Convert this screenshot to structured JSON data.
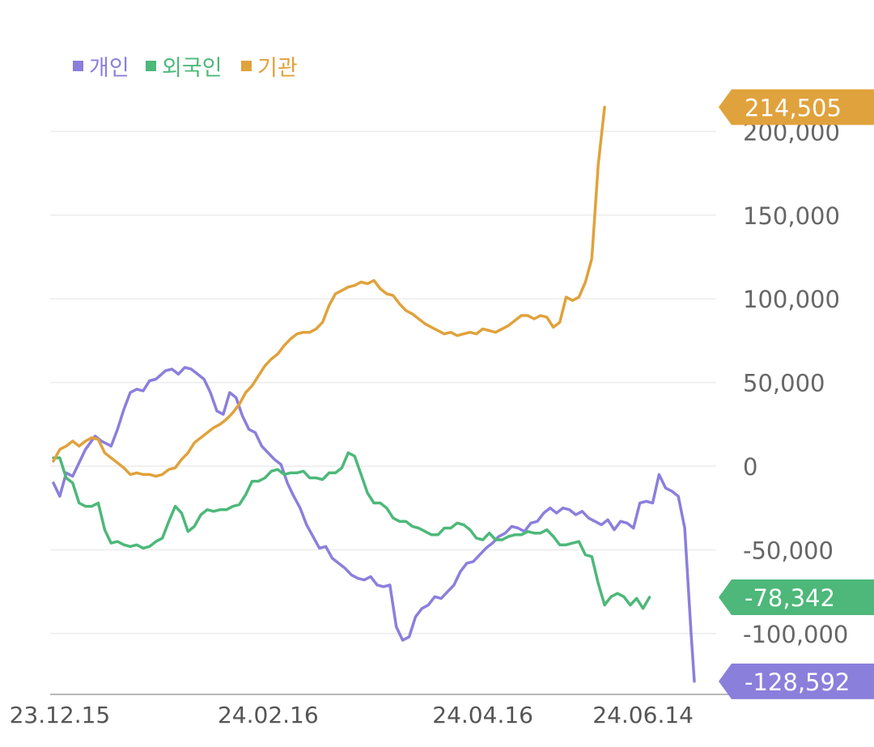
{
  "chart_data": {
    "type": "line",
    "legend": {
      "placement": "top-left",
      "items": [
        {
          "name": "개인",
          "color": "#8b7fdc"
        },
        {
          "name": "외국인",
          "color": "#4db87a"
        },
        {
          "name": "기관",
          "color": "#e0a23c"
        }
      ]
    },
    "x_ticks": [
      "23.12.15",
      "24.02.16",
      "24.04.16",
      "24.06.14"
    ],
    "y_ticks": [
      "200,000",
      "150,000",
      "100,000",
      "50,000",
      "0",
      "-50,000",
      "-100,000"
    ],
    "ylim": [
      -136000,
      225000
    ],
    "grid": "horizontal",
    "series": [
      {
        "name": "개인",
        "color": "#8b7fdc",
        "last_value_label": "-128,592",
        "points": [
          [
            0,
            -10000
          ],
          [
            2,
            -18000
          ],
          [
            4,
            -4000
          ],
          [
            6,
            -6000
          ],
          [
            8,
            2000
          ],
          [
            10,
            10000
          ],
          [
            13,
            18000
          ],
          [
            15,
            15000
          ],
          [
            18,
            12000
          ],
          [
            20,
            22000
          ],
          [
            22,
            34000
          ],
          [
            24,
            44000
          ],
          [
            26,
            46000
          ],
          [
            28,
            45000
          ],
          [
            30,
            51000
          ],
          [
            32,
            52000
          ],
          [
            35,
            57000
          ],
          [
            37,
            58000
          ],
          [
            39,
            55000
          ],
          [
            41,
            59000
          ],
          [
            43,
            58000
          ],
          [
            45,
            55000
          ],
          [
            47,
            52000
          ],
          [
            49,
            44000
          ],
          [
            51,
            33000
          ],
          [
            53,
            31000
          ],
          [
            55,
            44000
          ],
          [
            57,
            41000
          ],
          [
            59,
            30000
          ],
          [
            61,
            22000
          ],
          [
            63,
            20000
          ],
          [
            65,
            12000
          ],
          [
            67,
            8000
          ],
          [
            69,
            4000
          ],
          [
            71,
            1000
          ],
          [
            73,
            -10000
          ],
          [
            75,
            -18000
          ],
          [
            77,
            -25000
          ],
          [
            79,
            -35000
          ],
          [
            81,
            -42000
          ],
          [
            83,
            -49000
          ],
          [
            85,
            -48000
          ],
          [
            87,
            -55000
          ],
          [
            89,
            -58000
          ],
          [
            91,
            -61000
          ],
          [
            93,
            -65000
          ],
          [
            95,
            -67000
          ],
          [
            97,
            -68000
          ],
          [
            99,
            -66000
          ],
          [
            101,
            -71000
          ],
          [
            103,
            -72000
          ],
          [
            105,
            -71000
          ],
          [
            107,
            -96000
          ],
          [
            109,
            -104000
          ],
          [
            111,
            -102000
          ],
          [
            113,
            -90000
          ],
          [
            115,
            -85000
          ],
          [
            117,
            -83000
          ],
          [
            119,
            -78000
          ],
          [
            121,
            -79000
          ],
          [
            123,
            -75000
          ],
          [
            125,
            -71000
          ],
          [
            127,
            -63000
          ],
          [
            129,
            -58000
          ],
          [
            131,
            -57000
          ],
          [
            133,
            -53000
          ],
          [
            135,
            -49000
          ],
          [
            137,
            -46000
          ],
          [
            139,
            -42000
          ],
          [
            141,
            -40000
          ],
          [
            143,
            -36000
          ],
          [
            145,
            -37000
          ],
          [
            147,
            -39000
          ],
          [
            149,
            -34000
          ],
          [
            151,
            -33000
          ],
          [
            153,
            -28000
          ],
          [
            155,
            -25000
          ],
          [
            157,
            -28000
          ],
          [
            159,
            -25000
          ],
          [
            161,
            -26000
          ],
          [
            163,
            -29000
          ],
          [
            165,
            -27000
          ],
          [
            167,
            -31000
          ],
          [
            169,
            -33000
          ],
          [
            171,
            -35000
          ],
          [
            173,
            -32000
          ],
          [
            175,
            -38000
          ],
          [
            177,
            -33000
          ],
          [
            179,
            -34000
          ],
          [
            181,
            -37000
          ],
          [
            183,
            -22000
          ],
          [
            185,
            -21000
          ],
          [
            187,
            -22000
          ],
          [
            189,
            -5000
          ],
          [
            191,
            -13000
          ],
          [
            193,
            -15000
          ],
          [
            195,
            -18000
          ],
          [
            197,
            -37000
          ],
          [
            199,
            -100000
          ],
          [
            200,
            -128592
          ]
        ]
      },
      {
        "name": "외국인",
        "color": "#4db87a",
        "last_value_label": "-78,342",
        "points": [
          [
            0,
            5000
          ],
          [
            2,
            5000
          ],
          [
            4,
            -7000
          ],
          [
            6,
            -10000
          ],
          [
            8,
            -22000
          ],
          [
            10,
            -24000
          ],
          [
            12,
            -24000
          ],
          [
            14,
            -22000
          ],
          [
            16,
            -38000
          ],
          [
            18,
            -46000
          ],
          [
            20,
            -45000
          ],
          [
            22,
            -47000
          ],
          [
            24,
            -48000
          ],
          [
            26,
            -47000
          ],
          [
            28,
            -49000
          ],
          [
            30,
            -48000
          ],
          [
            32,
            -45000
          ],
          [
            34,
            -43000
          ],
          [
            36,
            -33000
          ],
          [
            38,
            -24000
          ],
          [
            40,
            -28000
          ],
          [
            42,
            -39000
          ],
          [
            44,
            -36000
          ],
          [
            46,
            -29000
          ],
          [
            48,
            -26000
          ],
          [
            50,
            -27000
          ],
          [
            52,
            -26000
          ],
          [
            54,
            -26000
          ],
          [
            56,
            -24000
          ],
          [
            58,
            -23000
          ],
          [
            60,
            -17000
          ],
          [
            62,
            -9000
          ],
          [
            64,
            -9000
          ],
          [
            66,
            -7000
          ],
          [
            68,
            -3000
          ],
          [
            70,
            -2000
          ],
          [
            72,
            -5000
          ],
          [
            74,
            -4000
          ],
          [
            76,
            -4000
          ],
          [
            78,
            -3000
          ],
          [
            80,
            -7000
          ],
          [
            82,
            -7000
          ],
          [
            84,
            -8000
          ],
          [
            86,
            -4000
          ],
          [
            88,
            -4000
          ],
          [
            90,
            -1000
          ],
          [
            92,
            8000
          ],
          [
            94,
            6000
          ],
          [
            96,
            -5000
          ],
          [
            98,
            -16000
          ],
          [
            100,
            -22000
          ],
          [
            102,
            -22000
          ],
          [
            104,
            -25000
          ],
          [
            106,
            -31000
          ],
          [
            108,
            -33000
          ],
          [
            110,
            -33000
          ],
          [
            112,
            -36000
          ],
          [
            114,
            -37000
          ],
          [
            116,
            -39000
          ],
          [
            118,
            -41000
          ],
          [
            120,
            -41000
          ],
          [
            122,
            -37000
          ],
          [
            124,
            -37000
          ],
          [
            126,
            -34000
          ],
          [
            128,
            -35000
          ],
          [
            130,
            -38000
          ],
          [
            132,
            -43000
          ],
          [
            134,
            -44000
          ],
          [
            136,
            -40000
          ],
          [
            138,
            -44000
          ],
          [
            140,
            -44000
          ],
          [
            142,
            -42000
          ],
          [
            144,
            -41000
          ],
          [
            146,
            -41000
          ],
          [
            148,
            -39000
          ],
          [
            150,
            -40000
          ],
          [
            152,
            -40000
          ],
          [
            154,
            -38000
          ],
          [
            156,
            -42000
          ],
          [
            158,
            -47000
          ],
          [
            160,
            -47000
          ],
          [
            162,
            -46000
          ],
          [
            164,
            -45000
          ],
          [
            166,
            -53000
          ],
          [
            168,
            -54000
          ],
          [
            170,
            -70000
          ],
          [
            172,
            -83000
          ],
          [
            174,
            -78000
          ],
          [
            176,
            -76000
          ],
          [
            178,
            -78000
          ],
          [
            180,
            -83000
          ],
          [
            182,
            -79000
          ],
          [
            184,
            -85000
          ],
          [
            186,
            -78342
          ]
        ]
      },
      {
        "name": "기관",
        "color": "#e0a23c",
        "last_value_label": "214,505",
        "points": [
          [
            0,
            3000
          ],
          [
            2,
            10000
          ],
          [
            4,
            12000
          ],
          [
            6,
            15000
          ],
          [
            8,
            12000
          ],
          [
            10,
            15000
          ],
          [
            12,
            17000
          ],
          [
            14,
            16000
          ],
          [
            16,
            8000
          ],
          [
            18,
            5000
          ],
          [
            20,
            2000
          ],
          [
            22,
            -1000
          ],
          [
            24,
            -5000
          ],
          [
            26,
            -4000
          ],
          [
            28,
            -5000
          ],
          [
            30,
            -5000
          ],
          [
            32,
            -6000
          ],
          [
            34,
            -5000
          ],
          [
            36,
            -2000
          ],
          [
            38,
            -1000
          ],
          [
            40,
            4000
          ],
          [
            42,
            8000
          ],
          [
            44,
            14000
          ],
          [
            46,
            17000
          ],
          [
            48,
            20000
          ],
          [
            50,
            23000
          ],
          [
            52,
            25000
          ],
          [
            54,
            28000
          ],
          [
            56,
            32000
          ],
          [
            58,
            37000
          ],
          [
            60,
            44000
          ],
          [
            62,
            48000
          ],
          [
            64,
            54000
          ],
          [
            66,
            60000
          ],
          [
            68,
            64000
          ],
          [
            70,
            67000
          ],
          [
            72,
            72000
          ],
          [
            74,
            76000
          ],
          [
            76,
            79000
          ],
          [
            78,
            80000
          ],
          [
            80,
            80000
          ],
          [
            82,
            82000
          ],
          [
            84,
            86000
          ],
          [
            86,
            96000
          ],
          [
            88,
            103000
          ],
          [
            90,
            105000
          ],
          [
            92,
            107000
          ],
          [
            94,
            108000
          ],
          [
            96,
            110000
          ],
          [
            98,
            109000
          ],
          [
            100,
            111000
          ],
          [
            102,
            106000
          ],
          [
            104,
            103000
          ],
          [
            106,
            102000
          ],
          [
            108,
            97000
          ],
          [
            110,
            93000
          ],
          [
            112,
            91000
          ],
          [
            114,
            88000
          ],
          [
            116,
            85000
          ],
          [
            118,
            83000
          ],
          [
            120,
            81000
          ],
          [
            122,
            79000
          ],
          [
            124,
            80000
          ],
          [
            126,
            78000
          ],
          [
            128,
            79000
          ],
          [
            130,
            80000
          ],
          [
            132,
            79000
          ],
          [
            134,
            82000
          ],
          [
            136,
            81000
          ],
          [
            138,
            80000
          ],
          [
            140,
            82000
          ],
          [
            142,
            84000
          ],
          [
            144,
            87000
          ],
          [
            146,
            90000
          ],
          [
            148,
            90000
          ],
          [
            150,
            88000
          ],
          [
            152,
            90000
          ],
          [
            154,
            89000
          ],
          [
            156,
            83000
          ],
          [
            158,
            86000
          ],
          [
            160,
            101000
          ],
          [
            162,
            99000
          ],
          [
            164,
            101000
          ],
          [
            166,
            110000
          ],
          [
            168,
            124000
          ],
          [
            170,
            180000
          ],
          [
            172,
            214505
          ]
        ]
      }
    ]
  }
}
